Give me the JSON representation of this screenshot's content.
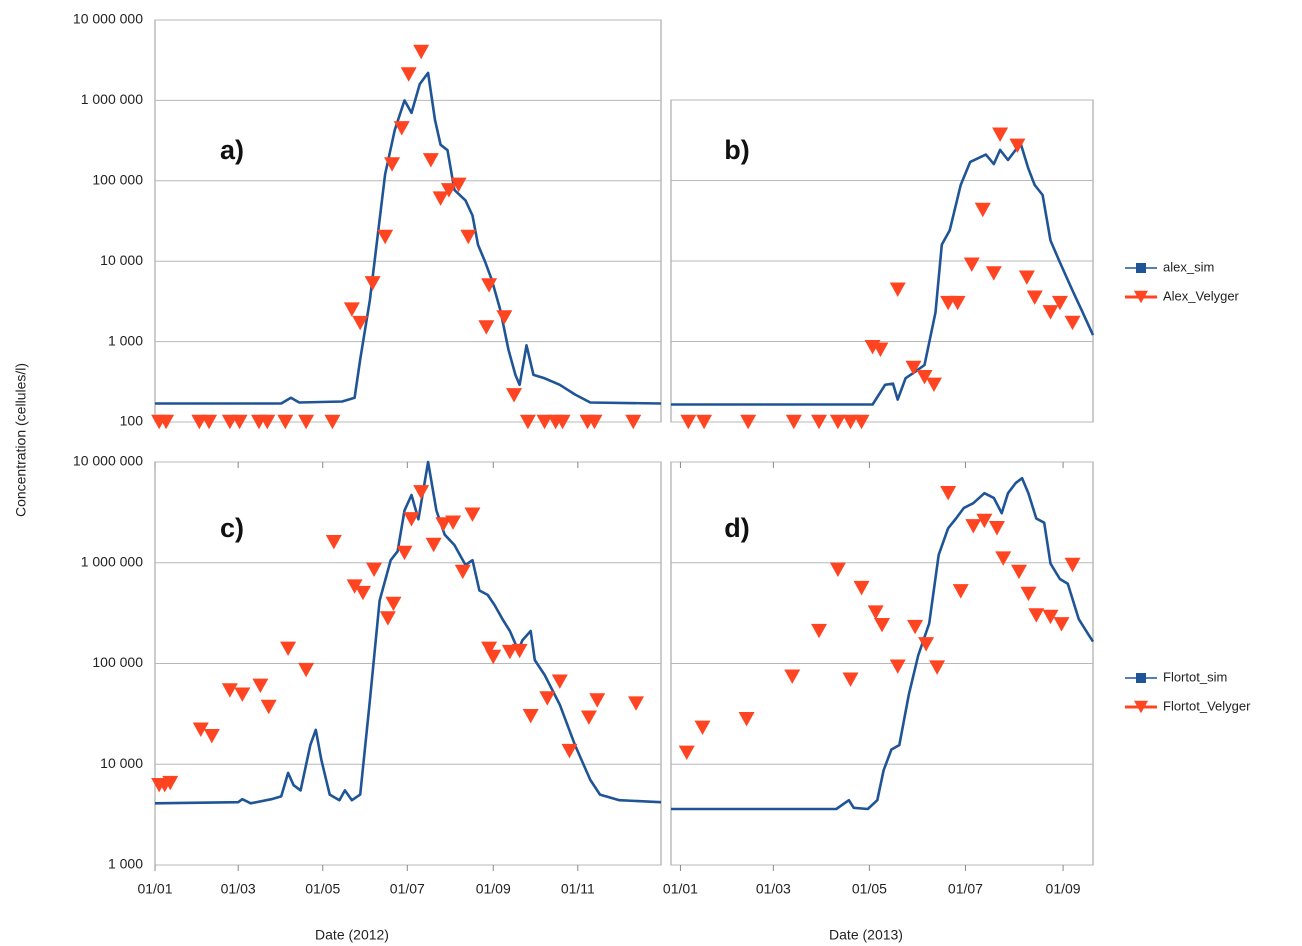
{
  "ylabel": "Concentration (cellules/l)",
  "chart_data": [
    {
      "type": "line",
      "annotation": "a)",
      "log_y": true,
      "grid": "y",
      "legend": "none",
      "ytick_labels": true,
      "xlim": [
        "2012-01-01",
        "2012-12-31"
      ],
      "ylim": [
        100,
        10000000
      ],
      "yticks": [
        100,
        {
          "value": 1000,
          "label": "1 000"
        },
        {
          "value": 10000,
          "label": "10 000"
        },
        {
          "value": 100000,
          "label": "100 000"
        },
        {
          "value": 1000000,
          "label": "1 000 000"
        },
        {
          "value": 10000000,
          "label": "10 000 000"
        }
      ],
      "series": [
        {
          "name": "alex_sim",
          "color": "#1f5596",
          "marker": "square",
          "line": true,
          "x": [
            "2012-01-01",
            "2012-04-01",
            "2012-04-08",
            "2012-04-14",
            "2012-05-15",
            "2012-05-24",
            "2012-05-28",
            "2012-06-04",
            "2012-06-15",
            "2012-06-22",
            "2012-06-29",
            "2012-07-04",
            "2012-07-10",
            "2012-07-16",
            "2012-07-21",
            "2012-07-25",
            "2012-07-30",
            "2012-08-04",
            "2012-08-12",
            "2012-08-17",
            "2012-08-21",
            "2012-08-26",
            "2012-08-31",
            "2012-09-06",
            "2012-09-12",
            "2012-09-17",
            "2012-09-20",
            "2012-09-25",
            "2012-09-30",
            "2012-10-08",
            "2012-10-19",
            "2012-10-30",
            "2012-11-10",
            "2012-12-31"
          ],
          "values": [
            170,
            170,
            200,
            175,
            180,
            200,
            600,
            3300,
            120000,
            430000,
            1000000,
            700000,
            1600000,
            2200000,
            570000,
            280000,
            240000,
            77000,
            57000,
            37000,
            16000,
            10000,
            5800,
            2500,
            790,
            385,
            290,
            900,
            385,
            350,
            290,
            220,
            175,
            170
          ]
        },
        {
          "name": "Alex_Velyger",
          "color": "#ff4422",
          "marker": "triangle-down",
          "line": false,
          "x": [
            "2012-01-04",
            "2012-01-09",
            "2012-02-02",
            "2012-02-09",
            "2012-02-24",
            "2012-03-02",
            "2012-03-16",
            "2012-03-22",
            "2012-04-04",
            "2012-04-19",
            "2012-05-08",
            "2012-05-22",
            "2012-05-28",
            "2012-06-06",
            "2012-06-15",
            "2012-06-20",
            "2012-06-27",
            "2012-07-02",
            "2012-07-11",
            "2012-07-18",
            "2012-07-25",
            "2012-07-31",
            "2012-08-07",
            "2012-08-14",
            "2012-08-27",
            "2012-08-29",
            "2012-09-09",
            "2012-09-16",
            "2012-09-26",
            "2012-10-08",
            "2012-10-16",
            "2012-10-21",
            "2012-11-08",
            "2012-11-13",
            "2012-12-11"
          ],
          "values": [
            100,
            100,
            100,
            100,
            100,
            100,
            100,
            100,
            100,
            100,
            100,
            2500,
            1700,
            5300,
            20000,
            160000,
            450000,
            2100000,
            4000000,
            180000,
            60000,
            76000,
            89000,
            20000,
            1500,
            5000,
            2000,
            215,
            100,
            100,
            100,
            100,
            100,
            100,
            100
          ]
        }
      ]
    },
    {
      "type": "line",
      "annotation": "b)",
      "log_y": true,
      "grid": "y",
      "legend": "right",
      "ytick_labels": false,
      "xlim": [
        "2012-12-26",
        "2013-09-20"
      ],
      "ylim": [
        100,
        1000000
      ],
      "yticks": [
        100,
        1000,
        10000,
        100000,
        1000000
      ],
      "series": [
        {
          "name": "alex_sim",
          "color": "#1f5596",
          "marker": "square",
          "line": true,
          "x": [
            "2012-12-26",
            "2013-05-03",
            "2013-05-11",
            "2013-05-16",
            "2013-05-19",
            "2013-05-24",
            "2013-05-30",
            "2013-06-05",
            "2013-06-12",
            "2013-06-16",
            "2013-06-21",
            "2013-06-28",
            "2013-07-04",
            "2013-07-14",
            "2013-07-19",
            "2013-07-23",
            "2013-07-28",
            "2013-08-05",
            "2013-08-10",
            "2013-08-14",
            "2013-08-19",
            "2013-08-24",
            "2013-08-30",
            "2013-09-07",
            "2013-09-13",
            "2013-09-20"
          ],
          "values": [
            165,
            165,
            290,
            300,
            190,
            350,
            420,
            510,
            2300,
            16000,
            24000,
            88000,
            170000,
            210000,
            160000,
            240000,
            180000,
            290000,
            140000,
            88000,
            66000,
            18000,
            9600,
            4300,
            2400,
            1200
          ]
        },
        {
          "name": "Alex_Velyger",
          "color": "#ff4422",
          "marker": "triangle-down",
          "line": false,
          "x": [
            "2013-01-06",
            "2013-01-16",
            "2013-02-13",
            "2013-03-14",
            "2013-03-30",
            "2013-04-11",
            "2013-04-19",
            "2013-04-26",
            "2013-05-03",
            "2013-05-08",
            "2013-05-19",
            "2013-05-29",
            "2013-06-05",
            "2013-06-11",
            "2013-06-20",
            "2013-06-26",
            "2013-07-05",
            "2013-07-12",
            "2013-07-19",
            "2013-07-23",
            "2013-08-03",
            "2013-08-09",
            "2013-08-14",
            "2013-08-24",
            "2013-08-30",
            "2013-09-07"
          ],
          "values": [
            100,
            100,
            100,
            100,
            100,
            100,
            100,
            100,
            850,
            790,
            4400,
            470,
            360,
            290,
            3000,
            3000,
            9000,
            43000,
            7000,
            370000,
            270000,
            6200,
            3500,
            2300,
            3000,
            1700
          ]
        }
      ]
    },
    {
      "type": "line",
      "annotation": "c)",
      "log_y": true,
      "grid": "y",
      "legend": "none",
      "ytick_labels": true,
      "xlabel": "Date (2012)",
      "xlim": [
        "2012-01-01",
        "2012-12-31"
      ],
      "ylim": [
        1000,
        10000000
      ],
      "xticks": [
        {
          "value": "2012-01-01",
          "label": "01/01"
        },
        {
          "value": "2012-03-01",
          "label": "01/03"
        },
        {
          "value": "2012-05-01",
          "label": "01/05"
        },
        {
          "value": "2012-07-01",
          "label": "01/07"
        },
        {
          "value": "2012-09-01",
          "label": "01/09"
        },
        {
          "value": "2012-11-01",
          "label": "01/11"
        }
      ],
      "yticks": [
        {
          "value": 1000,
          "label": "1 000"
        },
        {
          "value": 10000,
          "label": "10 000"
        },
        {
          "value": 100000,
          "label": "100 000"
        },
        {
          "value": 1000000,
          "label": "1 000 000"
        },
        {
          "value": 10000000,
          "label": "10 000 000"
        }
      ],
      "series": [
        {
          "name": "Flortot_sim",
          "color": "#1f5596",
          "marker": "square",
          "line": true,
          "x": [
            "2012-01-01",
            "2012-03-01",
            "2012-03-04",
            "2012-03-10",
            "2012-03-25",
            "2012-04-01",
            "2012-04-06",
            "2012-04-10",
            "2012-04-15",
            "2012-04-22",
            "2012-04-26",
            "2012-04-30",
            "2012-05-06",
            "2012-05-13",
            "2012-05-17",
            "2012-05-22",
            "2012-05-28",
            "2012-06-04",
            "2012-06-11",
            "2012-06-19",
            "2012-06-24",
            "2012-06-29",
            "2012-07-04",
            "2012-07-09",
            "2012-07-16",
            "2012-07-22",
            "2012-07-28",
            "2012-08-04",
            "2012-08-12",
            "2012-08-17",
            "2012-08-22",
            "2012-08-28",
            "2012-09-02",
            "2012-09-08",
            "2012-09-13",
            "2012-09-19",
            "2012-09-22",
            "2012-09-28",
            "2012-10-01",
            "2012-10-08",
            "2012-10-19",
            "2012-10-30",
            "2012-11-10",
            "2012-11-17",
            "2012-12-01",
            "2012-12-31"
          ],
          "values": [
            4100,
            4200,
            4500,
            4100,
            4500,
            4800,
            8200,
            6200,
            5500,
            15500,
            22000,
            11000,
            5000,
            4400,
            5500,
            4400,
            5000,
            43000,
            420000,
            1060000,
            1300000,
            3300000,
            4700000,
            2700000,
            10000000,
            3300000,
            1900000,
            1500000,
            950000,
            1060000,
            530000,
            480000,
            380000,
            270000,
            210000,
            135000,
            170000,
            210000,
            108000,
            77000,
            39000,
            15500,
            7000,
            5000,
            4400,
            4200
          ]
        },
        {
          "name": "Flortot_Velyger",
          "color": "#ff4422",
          "marker": "triangle-down",
          "line": false,
          "x": [
            "2012-01-04",
            "2012-01-08",
            "2012-01-12",
            "2012-02-03",
            "2012-02-11",
            "2012-02-24",
            "2012-03-04",
            "2012-03-17",
            "2012-03-23",
            "2012-04-06",
            "2012-04-19",
            "2012-05-09",
            "2012-05-24",
            "2012-05-30",
            "2012-06-07",
            "2012-06-17",
            "2012-06-21",
            "2012-06-29",
            "2012-07-04",
            "2012-07-11",
            "2012-07-20",
            "2012-07-27",
            "2012-08-03",
            "2012-08-10",
            "2012-08-17",
            "2012-08-29",
            "2012-09-01",
            "2012-09-13",
            "2012-09-20",
            "2012-09-28",
            "2012-10-10",
            "2012-10-19",
            "2012-10-26",
            "2012-11-09",
            "2012-11-15",
            "2012-12-13"
          ],
          "values": [
            6200,
            6200,
            6500,
            22000,
            19000,
            54000,
            49000,
            60000,
            37000,
            140000,
            86000,
            1600000,
            580000,
            500000,
            850000,
            280000,
            390000,
            1250000,
            2700000,
            5000000,
            1500000,
            2400000,
            2500000,
            810000,
            3000000,
            140000,
            116000,
            130000,
            133000,
            30000,
            45000,
            66000,
            13500,
            29000,
            43000,
            40000
          ]
        }
      ]
    },
    {
      "type": "line",
      "annotation": "d)",
      "log_y": true,
      "grid": "y",
      "legend": "right",
      "ytick_labels": false,
      "xlabel": "Date (2013)",
      "xlim": [
        "2012-12-26",
        "2013-09-20"
      ],
      "ylim": [
        1000,
        10000000
      ],
      "xticks": [
        {
          "value": "2013-01-01",
          "label": "01/01"
        },
        {
          "value": "2013-03-01",
          "label": "01/03"
        },
        {
          "value": "2013-05-01",
          "label": "01/05"
        },
        {
          "value": "2013-07-01",
          "label": "01/07"
        },
        {
          "value": "2013-09-01",
          "label": "01/09"
        }
      ],
      "yticks": [
        1000,
        10000,
        100000,
        1000000,
        10000000
      ],
      "series": [
        {
          "name": "Flortot_sim",
          "color": "#1f5596",
          "marker": "square",
          "line": true,
          "x": [
            "2012-12-26",
            "2013-04-10",
            "2013-04-18",
            "2013-04-21",
            "2013-04-30",
            "2013-05-06",
            "2013-05-10",
            "2013-05-15",
            "2013-05-20",
            "2013-05-26",
            "2013-06-01",
            "2013-06-08",
            "2013-06-14",
            "2013-06-20",
            "2013-06-25",
            "2013-06-30",
            "2013-07-06",
            "2013-07-13",
            "2013-07-19",
            "2013-07-24",
            "2013-07-28",
            "2013-08-02",
            "2013-08-06",
            "2013-08-10",
            "2013-08-15",
            "2013-08-20",
            "2013-08-24",
            "2013-08-30",
            "2013-09-04",
            "2013-09-11",
            "2013-09-17",
            "2013-09-20"
          ],
          "values": [
            3600,
            3600,
            4400,
            3700,
            3600,
            4400,
            8700,
            14000,
            15500,
            49000,
            120000,
            250000,
            1200000,
            2200000,
            2750000,
            3500000,
            3900000,
            4900000,
            4400000,
            3100000,
            4900000,
            6200000,
            6900000,
            4900000,
            2750000,
            2500000,
            980000,
            690000,
            620000,
            275000,
            195000,
            165000
          ]
        },
        {
          "name": "Flortot_Velyger",
          "color": "#ff4422",
          "marker": "triangle-down",
          "line": false,
          "x": [
            "2013-01-05",
            "2013-01-15",
            "2013-02-12",
            "2013-03-13",
            "2013-03-30",
            "2013-04-11",
            "2013-04-19",
            "2013-04-26",
            "2013-05-05",
            "2013-05-09",
            "2013-05-19",
            "2013-05-30",
            "2013-06-06",
            "2013-06-13",
            "2013-06-20",
            "2013-06-28",
            "2013-07-06",
            "2013-07-13",
            "2013-07-21",
            "2013-07-25",
            "2013-08-04",
            "2013-08-10",
            "2013-08-15",
            "2013-08-24",
            "2013-08-31",
            "2013-09-07"
          ],
          "values": [
            13000,
            23000,
            28000,
            74000,
            210000,
            850000,
            69000,
            560000,
            320000,
            240000,
            93000,
            230000,
            155000,
            91000,
            4900000,
            520000,
            2300000,
            2600000,
            2200000,
            1100000,
            810000,
            490000,
            300000,
            290000,
            245000,
            950000
          ]
        }
      ]
    }
  ]
}
